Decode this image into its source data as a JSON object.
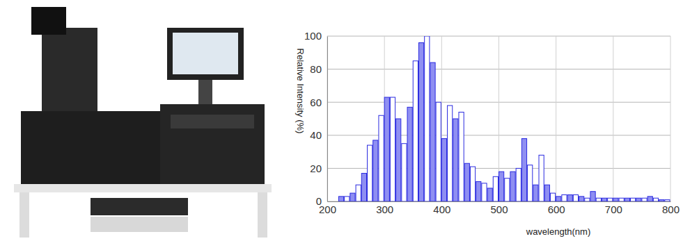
{
  "chart_data": {
    "type": "histogram",
    "y_label": "Relative Intensity (%)",
    "x_label": "wavelength(nm)",
    "bins": [
      220,
      230,
      240,
      250,
      260,
      270,
      280,
      290,
      300,
      310,
      320,
      330,
      340,
      350,
      360,
      370,
      380,
      390,
      400,
      410,
      420,
      430,
      440,
      450,
      460,
      470,
      480,
      490,
      500,
      510,
      520,
      530,
      540,
      550,
      560,
      570,
      580,
      590,
      600,
      610,
      620,
      630,
      640,
      650,
      660,
      670,
      680,
      690,
      700,
      710,
      720,
      730,
      740,
      750,
      760,
      770,
      780,
      790,
      800
    ],
    "counts": [
      3,
      3,
      5,
      10,
      17,
      34,
      37,
      52,
      63,
      63,
      50,
      35,
      57,
      85,
      96,
      100,
      84,
      60,
      38,
      58,
      50,
      54,
      23,
      21,
      12,
      11,
      8,
      15,
      18,
      14,
      18,
      20,
      38,
      22,
      10,
      28,
      10,
      5,
      3,
      4,
      4,
      4,
      3,
      2,
      6,
      2,
      2,
      2,
      2,
      2,
      2,
      2,
      2,
      2,
      3,
      2,
      1,
      1
    ],
    "color": "#2a2ae0",
    "xlim": [
      200,
      800
    ],
    "xticks": [
      200,
      300,
      400,
      500,
      600,
      700,
      800
    ],
    "ylim": [
      0,
      100
    ],
    "yticks": [
      0,
      20,
      40,
      60,
      80,
      100
    ],
    "grid": true
  }
}
